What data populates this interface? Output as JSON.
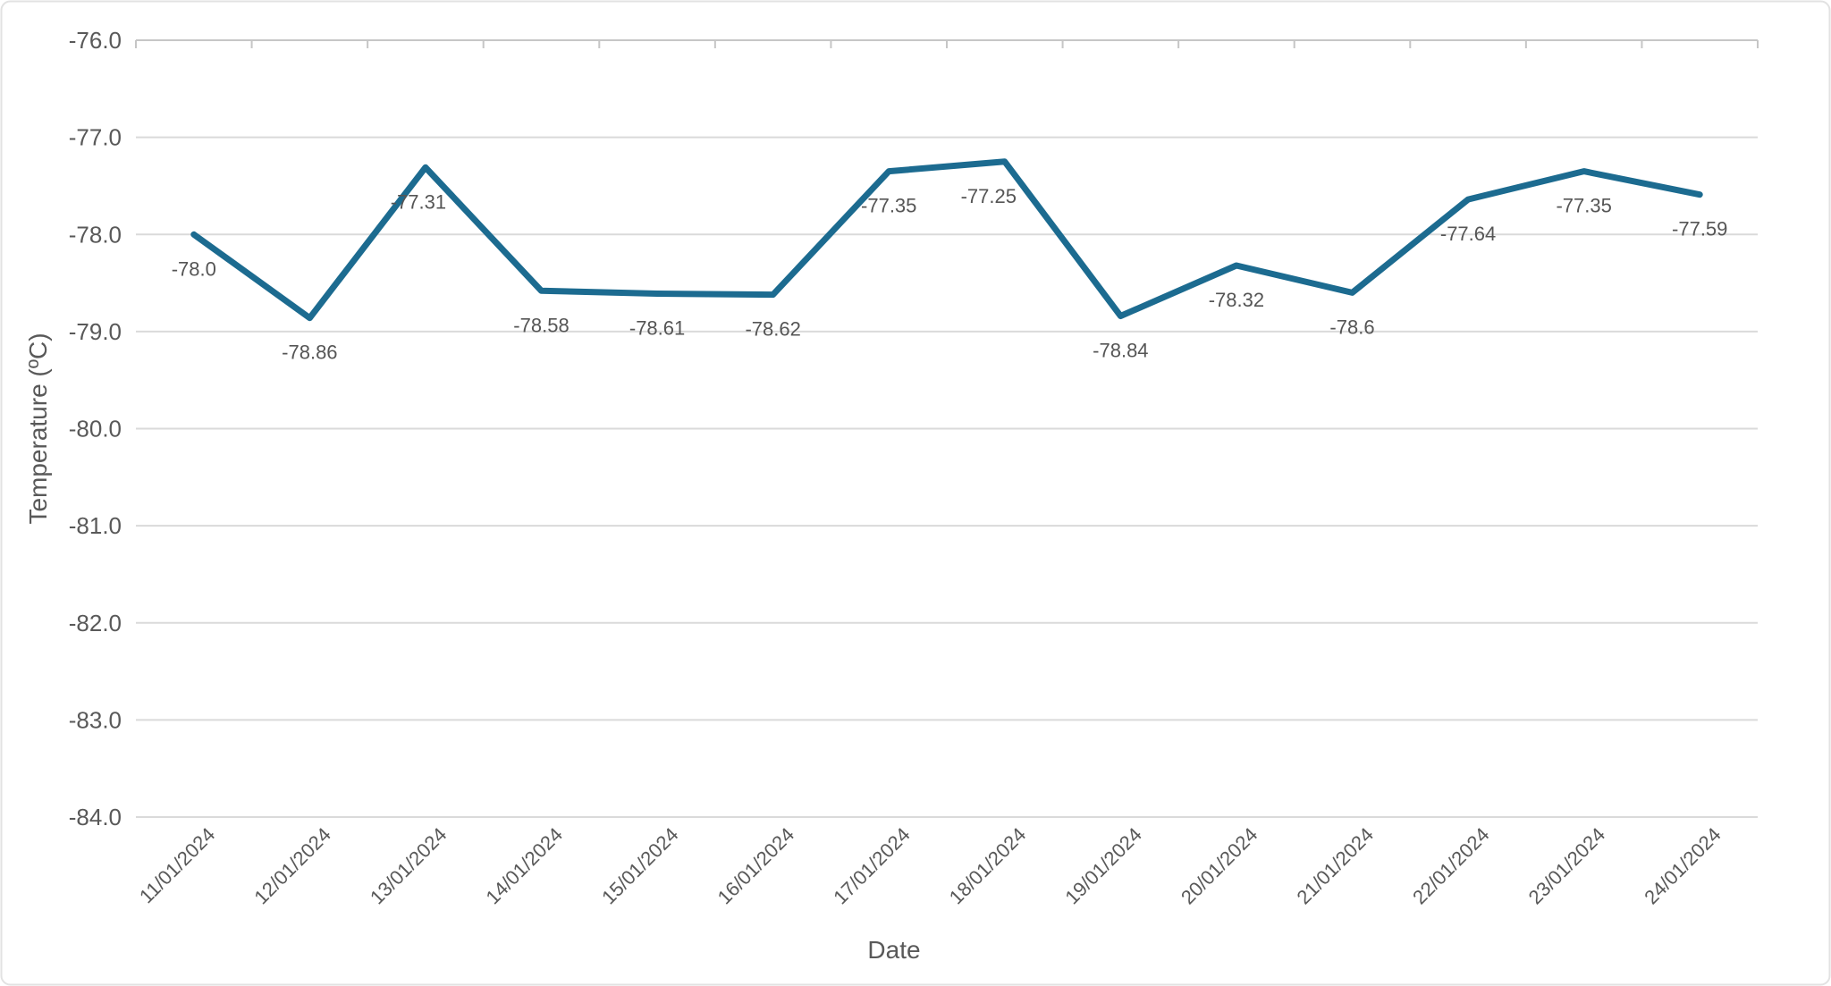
{
  "chart_data": {
    "type": "line",
    "title": "",
    "xlabel": "Date",
    "ylabel": "Temperature (ºC)",
    "categories": [
      "11/01/2024",
      "12/01/2024",
      "13/01/2024",
      "14/01/2024",
      "15/01/2024",
      "16/01/2024",
      "17/01/2024",
      "18/01/2024",
      "19/01/2024",
      "20/01/2024",
      "21/01/2024",
      "22/01/2024",
      "23/01/2024",
      "24/01/2024"
    ],
    "series": [
      {
        "name": "Temperature",
        "values": [
          -78.0,
          -78.86,
          -77.31,
          -78.58,
          -78.61,
          -78.62,
          -77.35,
          -77.25,
          -78.84,
          -78.32,
          -78.6,
          -77.64,
          -77.35,
          -77.59
        ],
        "point_labels": [
          "-78.0",
          "-78.86",
          "-77.31",
          "-78.58",
          "-78.61",
          "-78.62",
          "-77.35",
          "-77.25",
          "-78.84",
          "-78.32",
          "-78.6",
          "-77.64",
          "-77.35",
          "-77.59"
        ],
        "color": "#1C6B90"
      }
    ],
    "y_ticks": [
      "-76.0",
      "-77.0",
      "-78.0",
      "-79.0",
      "-80.0",
      "-81.0",
      "-82.0",
      "-83.0",
      "-84.0"
    ],
    "ylim": [
      -84.0,
      -76.0
    ],
    "grid": "horizontal",
    "legend": "none",
    "data_labels_position": "below",
    "colors": {
      "line": "#1C6B90",
      "gridline": "#DADADA",
      "axis_line": "#C6C6C6",
      "text": "#595959",
      "chart_border": "#E2E2E2",
      "background": "#FFFFFF"
    }
  }
}
